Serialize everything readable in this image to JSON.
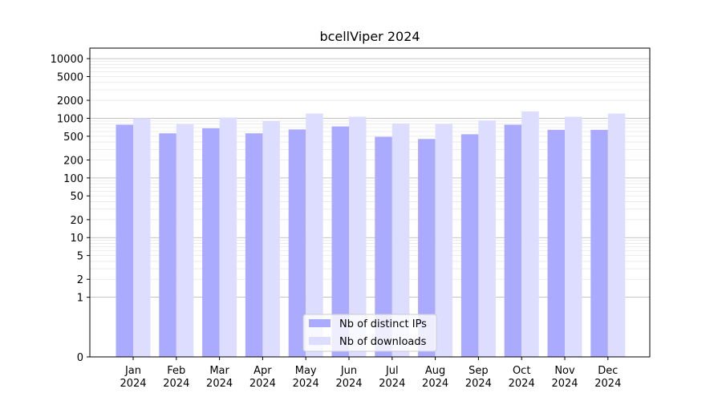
{
  "chart_data": {
    "type": "bar",
    "title": "bcellViper 2024",
    "xlabel": "",
    "ylabel": "",
    "yscale": "symlog",
    "ylim": [
      0,
      15000
    ],
    "y_ticks": [
      "0",
      "1",
      "2",
      "5",
      "10",
      "20",
      "50",
      "100",
      "200",
      "500",
      "1000",
      "2000",
      "5000",
      "10000"
    ],
    "categories": [
      [
        "Jan",
        "2024"
      ],
      [
        "Feb",
        "2024"
      ],
      [
        "Mar",
        "2024"
      ],
      [
        "Apr",
        "2024"
      ],
      [
        "May",
        "2024"
      ],
      [
        "Jun",
        "2024"
      ],
      [
        "Jul",
        "2024"
      ],
      [
        "Aug",
        "2024"
      ],
      [
        "Sep",
        "2024"
      ],
      [
        "Oct",
        "2024"
      ],
      [
        "Nov",
        "2024"
      ],
      [
        "Dec",
        "2024"
      ]
    ],
    "series": [
      {
        "name": "Nb of distinct IPs",
        "color": "#aaaaff",
        "values": [
          780,
          560,
          680,
          560,
          650,
          730,
          490,
          450,
          540,
          780,
          640,
          640
        ]
      },
      {
        "name": "Nb of downloads",
        "color": "#ddddff",
        "values": [
          1000,
          800,
          1030,
          900,
          1200,
          1060,
          820,
          810,
          920,
          1300,
          1060,
          1200
        ]
      }
    ],
    "grid": true,
    "legend_position": "bottom-center"
  }
}
